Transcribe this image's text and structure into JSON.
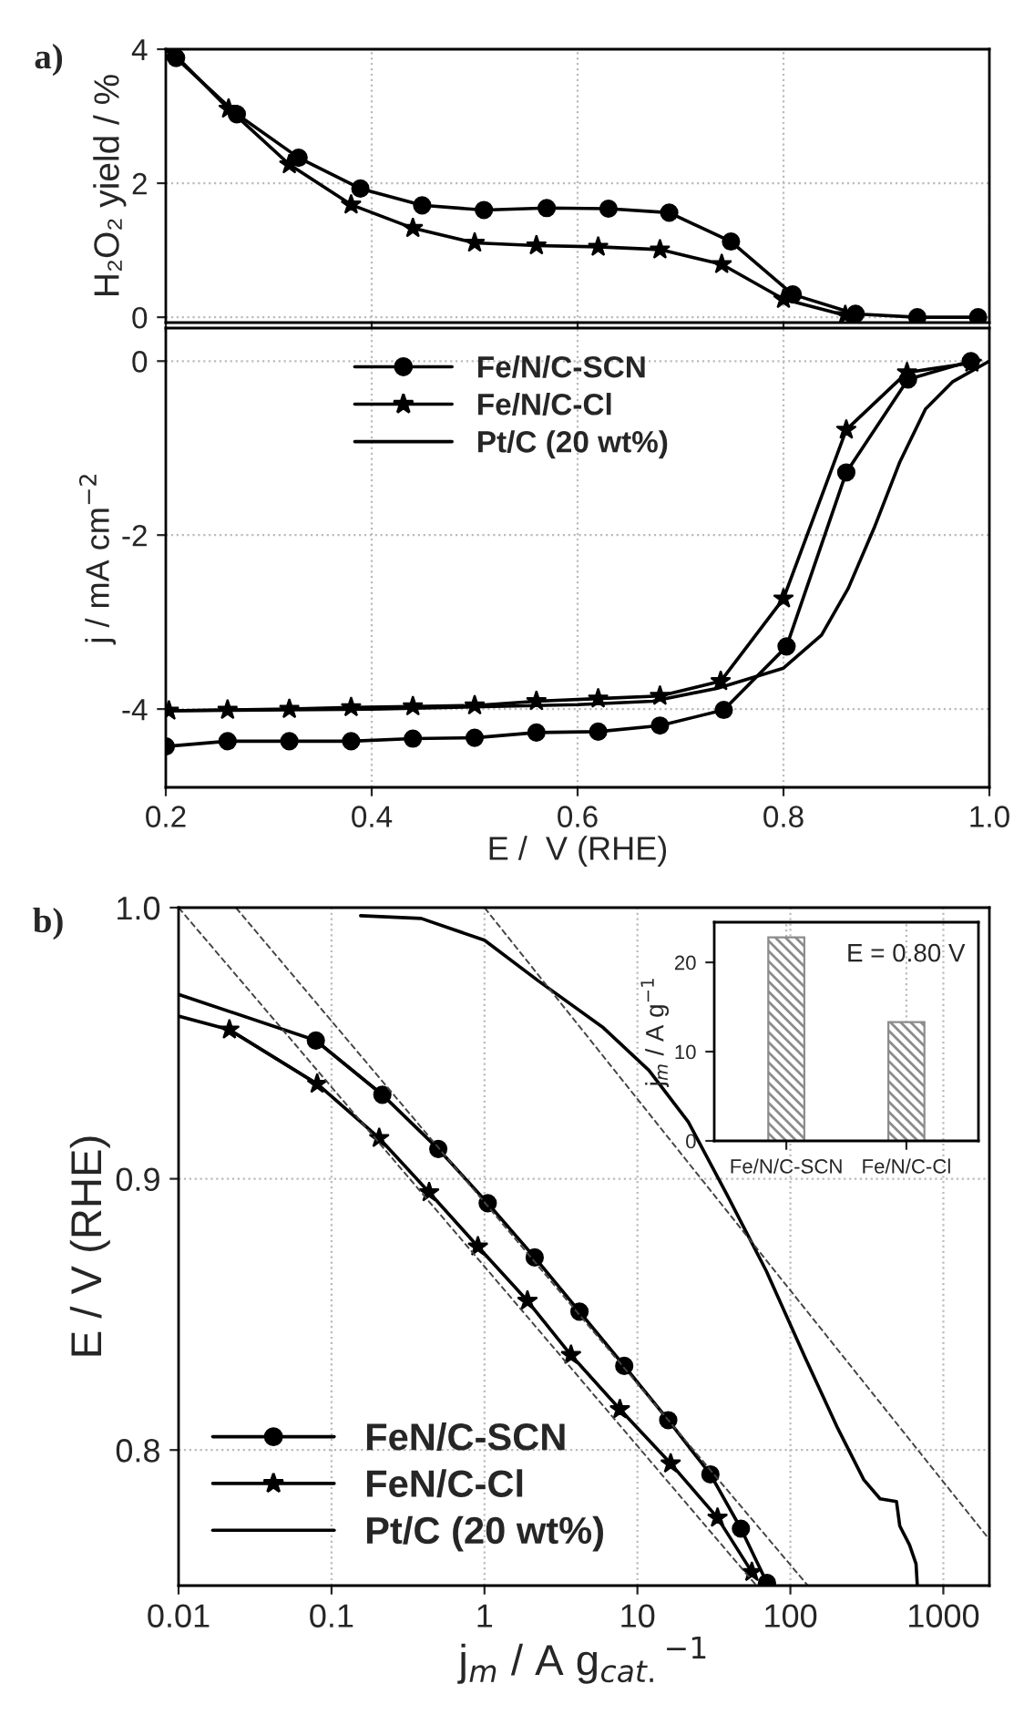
{
  "chart_data": [
    {
      "type": "line",
      "ylabel": "H₂O₂ yield / %",
      "annotations": [
        "a)"
      ],
      "xlim": [
        0.2,
        1.0
      ],
      "xticks": [
        0.2,
        0.4,
        0.6,
        0.8,
        1.0
      ],
      "ylim": [
        -0.08,
        4.0
      ],
      "yticks": [
        0,
        2,
        4
      ],
      "tick_labels": "y",
      "grid": true,
      "line_style": "solid",
      "series": [
        {
          "color": "#000000",
          "marker": "circle",
          "x": [
            0.21,
            0.269,
            0.329,
            0.389,
            0.449,
            0.509,
            0.57,
            0.63,
            0.689,
            0.749,
            0.809,
            0.87,
            0.93,
            0.989
          ],
          "values": [
            3.87,
            3.03,
            2.38,
            1.92,
            1.67,
            1.6,
            1.63,
            1.62,
            1.56,
            1.13,
            0.34,
            0.05,
            0.0,
            0.0
          ]
        },
        {
          "color": "#000000",
          "marker": "star",
          "x": [
            0.206,
            0.261,
            0.32,
            0.38,
            0.44,
            0.5,
            0.56,
            0.62,
            0.68,
            0.74,
            0.8,
            0.86
          ],
          "values": [
            3.96,
            3.11,
            2.28,
            1.68,
            1.33,
            1.11,
            1.07,
            1.05,
            1.01,
            0.79,
            0.27,
            0.03
          ]
        }
      ]
    },
    {
      "type": "line",
      "xlabel": "E /  V (RHE)",
      "ylabel": "j / mA cm$^{−2}$",
      "xlim": [
        0.2,
        1.0
      ],
      "xticks": [
        0.2,
        0.4,
        0.6,
        0.8,
        {
          "value": 1.0,
          "label": "1.0"
        }
      ],
      "ylim": [
        -4.9,
        0.38
      ],
      "yticks": [
        -4,
        -2,
        0
      ],
      "grid": true,
      "legend": "top",
      "line_style": "solid",
      "series": [
        {
          "name": "Fe/N/C-SCN",
          "color": "#000000",
          "marker": "circle",
          "x": [
            0.2,
            0.26,
            0.32,
            0.38,
            0.44,
            0.5,
            0.56,
            0.62,
            0.68,
            0.742,
            0.803,
            0.861,
            0.921,
            0.982
          ],
          "values": [
            -4.43,
            -4.37,
            -4.37,
            -4.37,
            -4.34,
            -4.33,
            -4.27,
            -4.26,
            -4.19,
            -4.01,
            -3.28,
            -1.28,
            -0.21,
            0.0
          ]
        },
        {
          "name": "Fe/N/C-Cl",
          "color": "#000000",
          "marker": "star",
          "x": [
            0.203,
            0.26,
            0.32,
            0.38,
            0.44,
            0.5,
            0.56,
            0.62,
            0.68,
            0.739,
            0.8,
            0.861,
            0.92,
            0.983
          ],
          "values": [
            -4.02,
            -4.01,
            -4.0,
            -3.98,
            -3.97,
            -3.96,
            -3.91,
            -3.88,
            -3.85,
            -3.68,
            -2.73,
            -0.79,
            -0.13,
            -0.02
          ]
        },
        {
          "name": "Pt/C (20 wt%)",
          "color": "#000000",
          "marker": "none",
          "x": [
            0.2,
            0.4,
            0.6,
            0.673,
            0.736,
            0.8,
            0.837,
            0.863,
            0.888,
            0.913,
            0.938,
            0.964,
            1.0
          ],
          "values": [
            -4.02,
            -4.0,
            -3.95,
            -3.91,
            -3.76,
            -3.53,
            -3.15,
            -2.61,
            -1.92,
            -1.16,
            -0.55,
            -0.24,
            0.0
          ]
        }
      ]
    },
    {
      "type": "line",
      "xlabel": "j$_{m}$ / A g$_{cat.}$$^{−1}$",
      "ylabel": "E / V (RHE)",
      "annotations": [
        "b)"
      ],
      "log": "x",
      "xlim": [
        0.01,
        2000
      ],
      "xticks": [
        0.01,
        0.1,
        1,
        10,
        100,
        1000
      ],
      "ylim": [
        0.75,
        1.0
      ],
      "yticks": [
        0.8,
        0.9,
        {
          "value": 1.0,
          "label": "1.0"
        }
      ],
      "grid": true,
      "legend": "bottom left",
      "line_style": "solid",
      "series": [
        {
          "name": "FeN/C-SCN",
          "color": "#000000",
          "marker": "circle",
          "x": [
            0.079,
            0.215,
            0.499,
            1.05,
            2.13,
            4.18,
            8.2,
            15.9,
            30,
            47.5,
            70.3
          ],
          "values": [
            0.951,
            0.931,
            0.911,
            0.891,
            0.871,
            0.851,
            0.831,
            0.811,
            0.791,
            0.771,
            0.751
          ]
        },
        {
          "name": "FeN/C-Cl",
          "color": "#000000",
          "marker": "star",
          "x": [
            0.0215,
            0.0806,
            0.205,
            0.435,
            0.906,
            1.91,
            3.68,
            7.68,
            16.5,
            33.4,
            56
          ],
          "values": [
            0.955,
            0.935,
            0.915,
            0.895,
            0.875,
            0.855,
            0.835,
            0.815,
            0.795,
            0.775,
            0.755
          ]
        },
        {
          "name": "Pt/C (20 wt%)",
          "color": "#000000",
          "marker": "none",
          "x": [
            0.155,
            0.386,
            1.0,
            2.25,
            5.9,
            11.9,
            21.5,
            38.6,
            69.6,
            125,
            204,
            302,
            386,
            494,
            519,
            601,
            663,
            676
          ],
          "values": [
            0.997,
            0.996,
            0.988,
            0.973,
            0.956,
            0.94,
            0.921,
            0.894,
            0.866,
            0.834,
            0.808,
            0.789,
            0.782,
            0.781,
            0.772,
            0.765,
            0.758,
            0.75
          ]
        },
        {
          "color": "#000000",
          "marker": "none",
          "x": [
            0.01,
            0.079,
            0.215
          ],
          "values": [
            0.968,
            0.951,
            0.931
          ]
        },
        {
          "color": "#000000",
          "marker": "none",
          "x": [
            0.01,
            0.0215,
            0.0806
          ],
          "values": [
            0.96,
            0.955,
            0.935
          ]
        },
        {
          "color": "#444444",
          "marker": "none",
          "line_style": "dashed",
          "x": [
            0.01,
            60
          ],
          "values": [
            1.0,
            0.75
          ]
        },
        {
          "color": "#444444",
          "marker": "none",
          "line_style": "dashed",
          "x": [
            0.0237,
            130
          ],
          "values": [
            1.0,
            0.75
          ]
        },
        {
          "color": "#444444",
          "marker": "none",
          "line_style": "dashed",
          "x": [
            1.0,
            2000
          ],
          "values": [
            1.0,
            0.767
          ]
        }
      ]
    },
    {
      "type": "bar",
      "ylabel": "j$_{m}$ / A g$^{−1}$",
      "annotations": [
        "E = 0.80 V"
      ],
      "categories": [
        "Fe/N/C-SCN",
        "Fe/N/C-Cl"
      ],
      "values": [
        22.8,
        13.3
      ],
      "color": "#8c8c8c",
      "ylim": [
        0,
        24.5
      ],
      "yticks": [
        0,
        10,
        20
      ],
      "grid": "x"
    }
  ]
}
